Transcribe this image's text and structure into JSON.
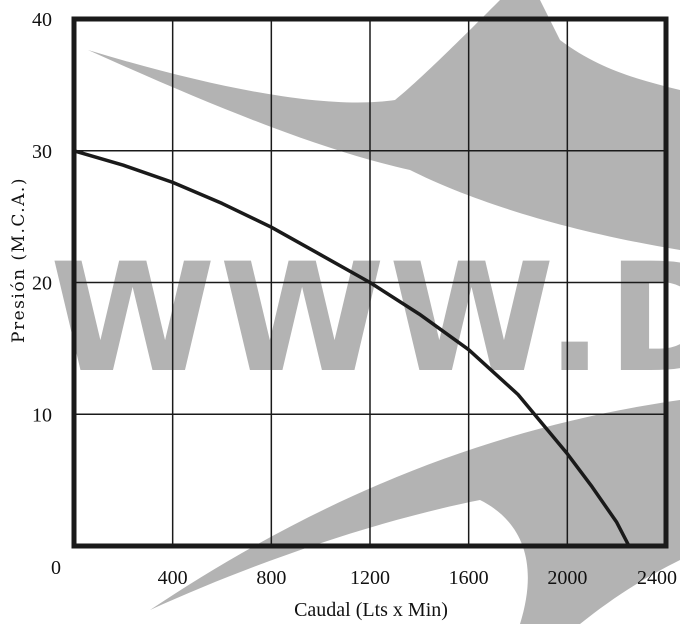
{
  "chart_data": {
    "type": "line",
    "title": "",
    "xlabel": "Caudal (Lts x Min)",
    "ylabel": "Presión (M.C.A.)",
    "xlim": [
      0,
      2400
    ],
    "ylim": [
      0,
      40
    ],
    "x_tick_labels": [
      "0",
      "400",
      "800",
      "1200",
      "1600",
      "2000",
      "2400"
    ],
    "y_tick_labels": [
      "10",
      "20",
      "30",
      "40"
    ],
    "grid": true,
    "series": [
      {
        "x": [
          0,
          200,
          400,
          600,
          800,
          1000,
          1200,
          1400,
          1600,
          1800,
          2000,
          2100,
          2200,
          2250
        ],
        "y": [
          30,
          28.9,
          27.6,
          26.0,
          24.2,
          22.1,
          20.0,
          17.6,
          14.9,
          11.5,
          7.0,
          4.5,
          1.8,
          0
        ]
      }
    ],
    "colors": {
      "line": "#1a1a1a",
      "grid": "#1a1a1a",
      "frame": "#1a1a1a",
      "watermark": "#b3b3b3"
    }
  },
  "watermark": {
    "text": "WWW.DF"
  }
}
